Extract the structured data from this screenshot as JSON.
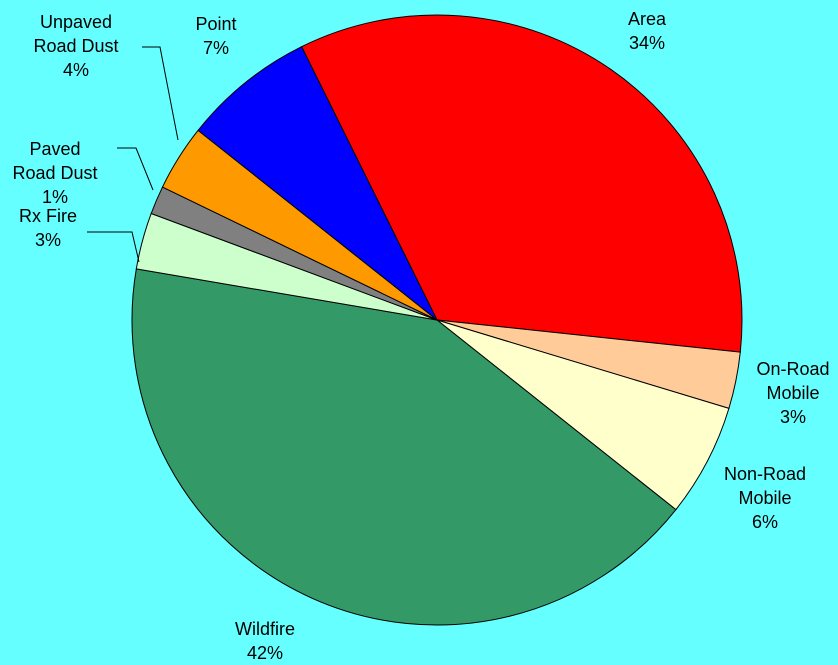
{
  "chart_data": {
    "type": "pie",
    "background_color": "#66FFFF",
    "start": "top, clockwise",
    "slices": [
      {
        "name": "Area",
        "percent_label": "34%",
        "value": 34,
        "color": "#FF0000",
        "label_lines": [
          "Area",
          "34%"
        ]
      },
      {
        "name": "On-Road Mobile",
        "percent_label": "3%",
        "value": 3,
        "color": "#FFCC99",
        "label_lines": [
          "On-Road",
          "Mobile",
          "3%"
        ]
      },
      {
        "name": "Non-Road Mobile",
        "percent_label": "6%",
        "value": 6,
        "color": "#FFFFCC",
        "label_lines": [
          "Non-Road",
          "Mobile",
          "6%"
        ]
      },
      {
        "name": "Wildfire",
        "percent_label": "42%",
        "value": 42,
        "color": "#339966",
        "label_lines": [
          "Wildfire",
          "42%"
        ]
      },
      {
        "name": "Rx Fire",
        "percent_label": "3%",
        "value": 3,
        "color": "#CCFFCC",
        "label_lines": [
          "Rx Fire",
          "3%"
        ]
      },
      {
        "name": "Paved Road Dust",
        "percent_label": "1%",
        "value": 1.5,
        "color": "#808080",
        "label_lines": [
          "Paved",
          "Road Dust",
          "1%"
        ]
      },
      {
        "name": "Unpaved Road Dust",
        "percent_label": "4%",
        "value": 3.5,
        "color": "#FF9900",
        "label_lines": [
          "Unpaved",
          "Road Dust",
          "4%"
        ]
      },
      {
        "name": "Point",
        "percent_label": "7%",
        "value": 7,
        "color": "#0000FF",
        "label_lines": [
          "Point",
          "7%"
        ]
      }
    ]
  }
}
